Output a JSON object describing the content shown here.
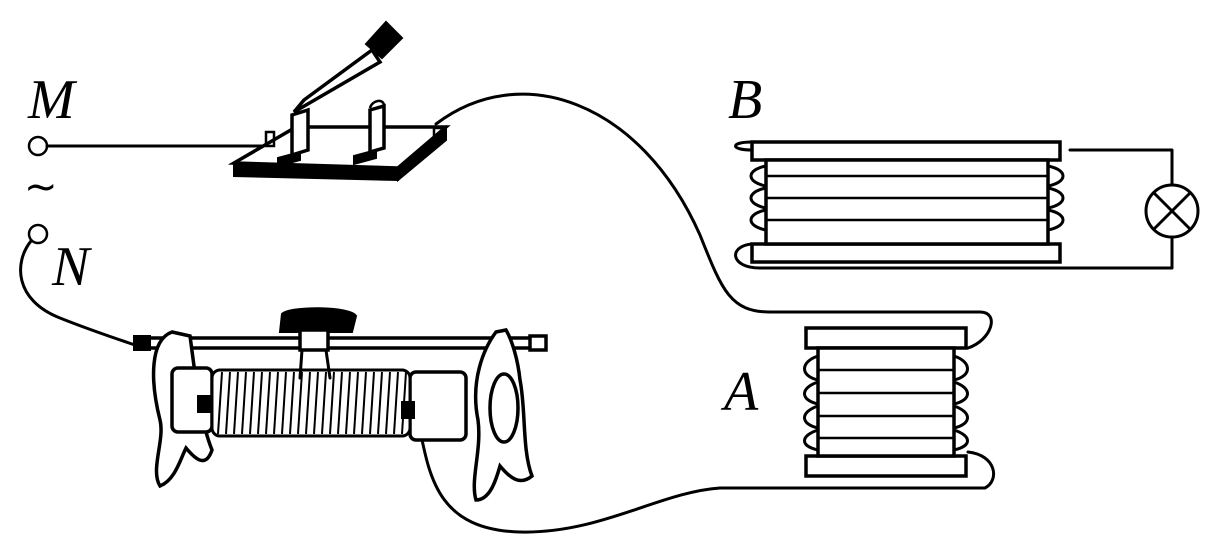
{
  "labels": {
    "terminal_m": "M",
    "terminal_n": "N",
    "ac_symbol": "~",
    "coil_b": "B",
    "coil_a": "A"
  },
  "colors": {
    "ink": "#000000",
    "paper": "#ffffff"
  }
}
